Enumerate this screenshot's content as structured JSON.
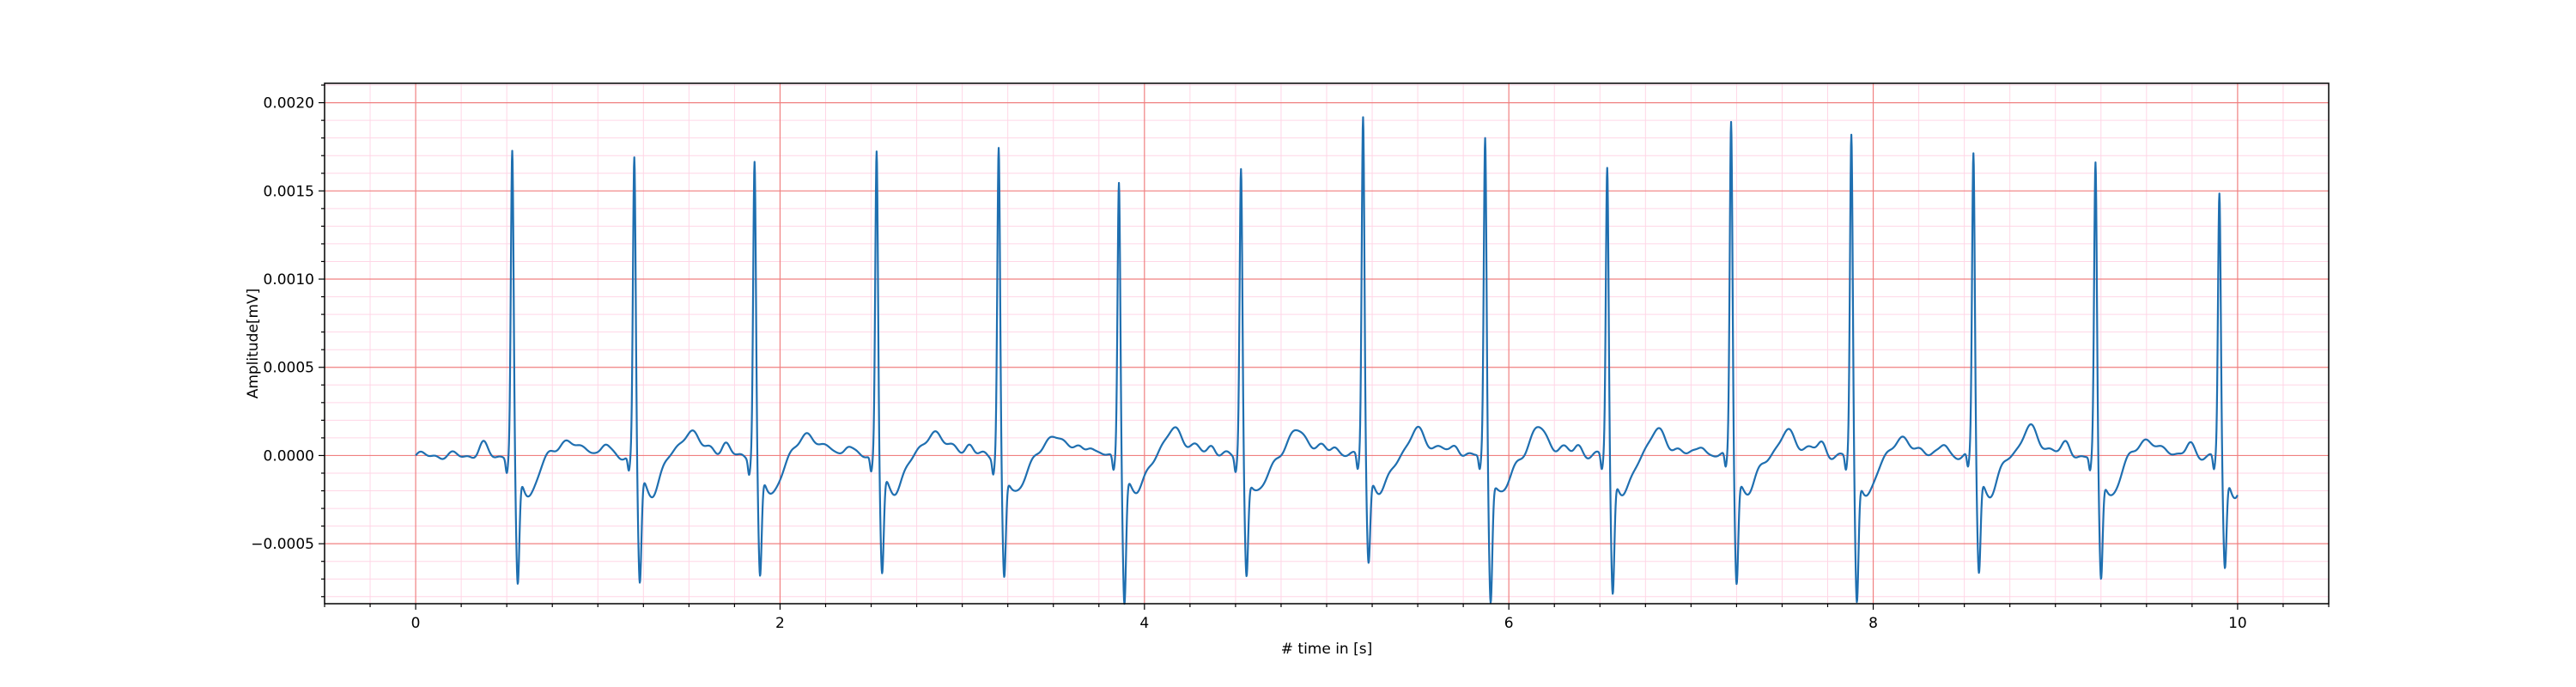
{
  "chart_data": {
    "type": "line",
    "title": "",
    "xlabel": "# time in [s]",
    "ylabel": "Amplitude[mV]",
    "xlim": [
      -0.5,
      10.5
    ],
    "ylim": [
      -0.00084,
      0.00211
    ],
    "x_ticks": [
      0,
      2,
      4,
      6,
      8,
      10
    ],
    "x_tick_labels": [
      "0",
      "2",
      "4",
      "6",
      "8",
      "10"
    ],
    "y_ticks": [
      -0.0005,
      0.0,
      0.0005,
      0.001,
      0.0015,
      0.002
    ],
    "y_tick_labels": [
      "−0.0005",
      "0.0000",
      "0.0005",
      "0.0010",
      "0.0015",
      "0.0020"
    ],
    "grid": {
      "major": true,
      "major_color": "#f08080",
      "minor": true,
      "minor_color": "#ffd6e6"
    },
    "legend": "none",
    "series": [
      {
        "color": "#1f6fb0",
        "beats": [
          {
            "r_time": 0.53,
            "r_peak": 0.00175,
            "s_min": -0.00062
          },
          {
            "r_time": 1.2,
            "r_peak": 0.00172,
            "s_min": -0.0006
          },
          {
            "r_time": 1.86,
            "r_peak": 0.0017,
            "s_min": -0.00057
          },
          {
            "r_time": 2.53,
            "r_peak": 0.00177,
            "s_min": -0.00054
          },
          {
            "r_time": 3.2,
            "r_peak": 0.00178,
            "s_min": -0.00056
          },
          {
            "r_time": 3.86,
            "r_peak": 0.0016,
            "s_min": -0.0007
          },
          {
            "r_time": 4.53,
            "r_peak": 0.00166,
            "s_min": -0.00054
          },
          {
            "r_time": 5.2,
            "r_peak": 0.00197,
            "s_min": -0.00047
          },
          {
            "r_time": 5.87,
            "r_peak": 0.00183,
            "s_min": -0.00068
          },
          {
            "r_time": 6.54,
            "r_peak": 0.00167,
            "s_min": -0.00065
          },
          {
            "r_time": 7.22,
            "r_peak": 0.00193,
            "s_min": -0.00058
          },
          {
            "r_time": 7.88,
            "r_peak": 0.00184,
            "s_min": -0.0007
          },
          {
            "r_time": 8.55,
            "r_peak": 0.00174,
            "s_min": -0.00053
          },
          {
            "r_time": 9.22,
            "r_peak": 0.00167,
            "s_min": -0.00057
          },
          {
            "r_time": 9.9,
            "r_peak": 0.00151,
            "s_min": -0.00052
          }
        ],
        "start": [
          0.0,
          -4e-05
        ],
        "end": [
          10.0,
          -0.00021
        ]
      }
    ]
  }
}
